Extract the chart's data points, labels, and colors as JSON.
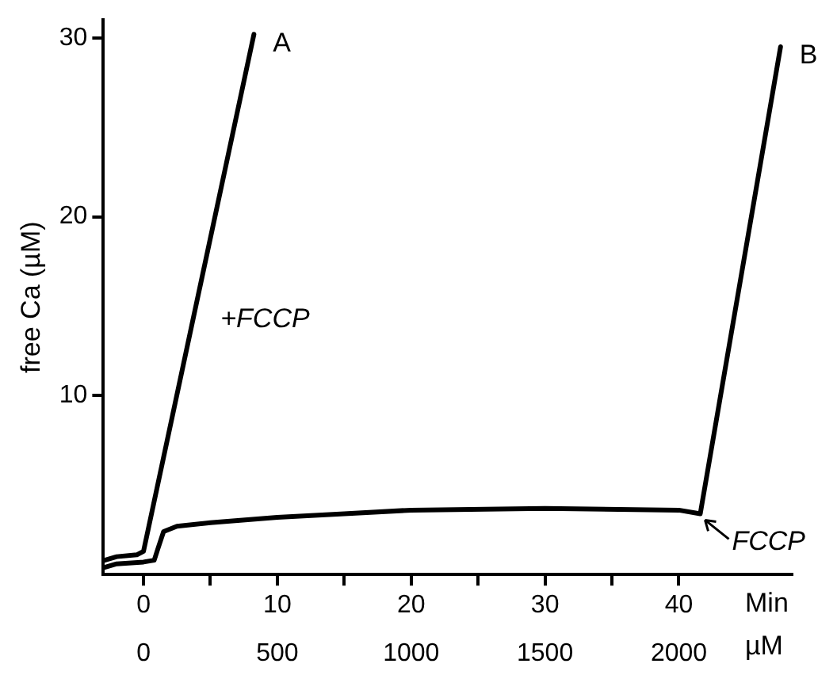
{
  "chart_data": {
    "type": "line",
    "ylabel": "free Ca (µM)",
    "xlabel": "Min",
    "x2label": "µM",
    "xlim": [
      -3,
      48.5
    ],
    "xticks": [
      0,
      {
        "value": 5,
        "label": null
      },
      10,
      {
        "value": 15,
        "label": null
      },
      20,
      {
        "value": 25,
        "label": null
      },
      30,
      {
        "value": 35,
        "label": null
      },
      40
    ],
    "x2lim": [
      -150,
      2425
    ],
    "x2ticks": [
      0,
      500,
      1000,
      1500,
      2000
    ],
    "ylim": [
      0,
      31
    ],
    "yticks": [
      10,
      20,
      30
    ],
    "grid": false,
    "legend": false,
    "marker": "none",
    "line_style": "solid",
    "series": [
      {
        "name": "A",
        "color": "#000000",
        "x": [
          -2.9,
          -2,
          -0.5,
          0,
          8.25
        ],
        "values": [
          0.8,
          1.0,
          1.1,
          1.3,
          30.2
        ]
      },
      {
        "name": "B",
        "color": "#000000",
        "x": [
          -2.9,
          -2,
          0,
          0.8,
          1.1,
          1.5,
          2.5,
          5,
          10,
          15,
          20,
          30,
          40,
          41.6,
          47.6
        ],
        "values": [
          0.4,
          0.6,
          0.7,
          0.8,
          1.5,
          2.4,
          2.7,
          2.9,
          3.2,
          3.4,
          3.6,
          3.7,
          3.6,
          3.4,
          29.5
        ]
      }
    ],
    "annotations": [
      "+FCCP",
      {
        "text": "FCCP",
        "x": 41.6,
        "y": 3.4
      }
    ]
  }
}
